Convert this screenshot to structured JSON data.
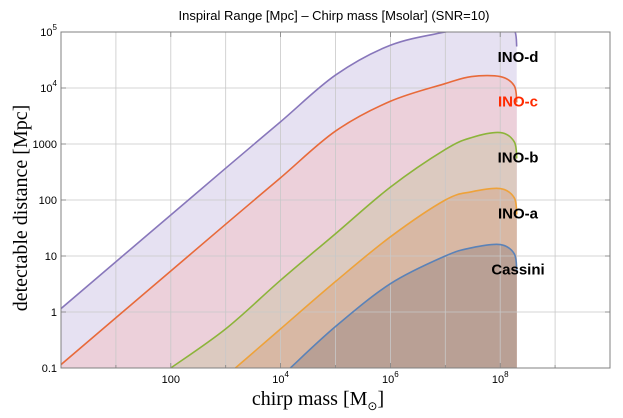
{
  "chart_data": {
    "type": "area",
    "title": "Inspiral Range [Mpc] – Chirp mass [Msolar] (SNR=10)",
    "xlabel": "chirp mass [M",
    "xlabel_sub": "⊙",
    "xlabel_close": "]",
    "ylabel": "detectable distance [Mpc]",
    "xscale": "log",
    "yscale": "log",
    "xlim": [
      1,
      10000000000
    ],
    "ylim": [
      0.1,
      100000
    ],
    "grid": true,
    "x_ticks": [
      {
        "value": 100,
        "base": "100",
        "exp": ""
      },
      {
        "value": 10000,
        "base": "10",
        "exp": "4"
      },
      {
        "value": 1000000,
        "base": "10",
        "exp": "6"
      },
      {
        "value": 100000000,
        "base": "10",
        "exp": "8"
      }
    ],
    "y_ticks": [
      {
        "value": 0.1,
        "base": "0.1",
        "exp": ""
      },
      {
        "value": 1,
        "base": "1",
        "exp": ""
      },
      {
        "value": 10,
        "base": "10",
        "exp": ""
      },
      {
        "value": 100,
        "base": "100",
        "exp": ""
      },
      {
        "value": 1000,
        "base": "1000",
        "exp": ""
      },
      {
        "value": 10000,
        "base": "10",
        "exp": "4"
      },
      {
        "value": 100000,
        "base": "10",
        "exp": "5"
      }
    ],
    "series": [
      {
        "name": "INO-d",
        "color": "#8877bb",
        "fill": "#e6e1f2",
        "label_color": "#000000",
        "x": [
          1,
          10,
          100,
          1000,
          10000,
          100000,
          1000000,
          10000000,
          30000000,
          100000000,
          180000000,
          200000000
        ],
        "y": [
          1.15,
          7.9,
          54,
          370,
          2500,
          17000,
          58000,
          100000,
          120000,
          160000,
          110000,
          55000
        ]
      },
      {
        "name": "INO-c",
        "color": "#e86a3a",
        "fill": "#ecd0da",
        "label_color": "#ff2a00",
        "x": [
          1,
          10,
          100,
          1000,
          10000,
          100000,
          1000000,
          10000000,
          30000000,
          100000000,
          180000000,
          200000000
        ],
        "y": [
          0.115,
          0.79,
          5.4,
          37,
          250,
          1700,
          5800,
          12000,
          16000,
          16000,
          11000,
          5500
        ]
      },
      {
        "name": "INO-b",
        "color": "#8cb43a",
        "fill": "#dccac0",
        "label_color": "#000000",
        "x": [
          100,
          1000,
          10000,
          100000,
          1000000,
          10000000,
          30000000,
          100000000,
          180000000,
          200000000
        ],
        "y": [
          0.1,
          0.5,
          3.7,
          25,
          170,
          800,
          1300,
          1600,
          1100,
          550
        ]
      },
      {
        "name": "INO-a",
        "color": "#eea23a",
        "fill": "#d8b8a4",
        "label_color": "#000000",
        "x": [
          1500,
          10000,
          100000,
          1000000,
          10000000,
          30000000,
          100000000,
          180000000,
          200000000
        ],
        "y": [
          0.1,
          0.5,
          3.5,
          22,
          100,
          140,
          160,
          110,
          55
        ]
      },
      {
        "name": "Cassini",
        "color": "#5a82b8",
        "fill": "#b9a095",
        "label_color": "#000000",
        "x": [
          15000,
          100000,
          1000000,
          10000000,
          30000000,
          100000000,
          180000000,
          200000000
        ],
        "y": [
          0.1,
          0.55,
          3.2,
          10,
          14,
          16,
          11,
          5.5
        ]
      }
    ]
  }
}
